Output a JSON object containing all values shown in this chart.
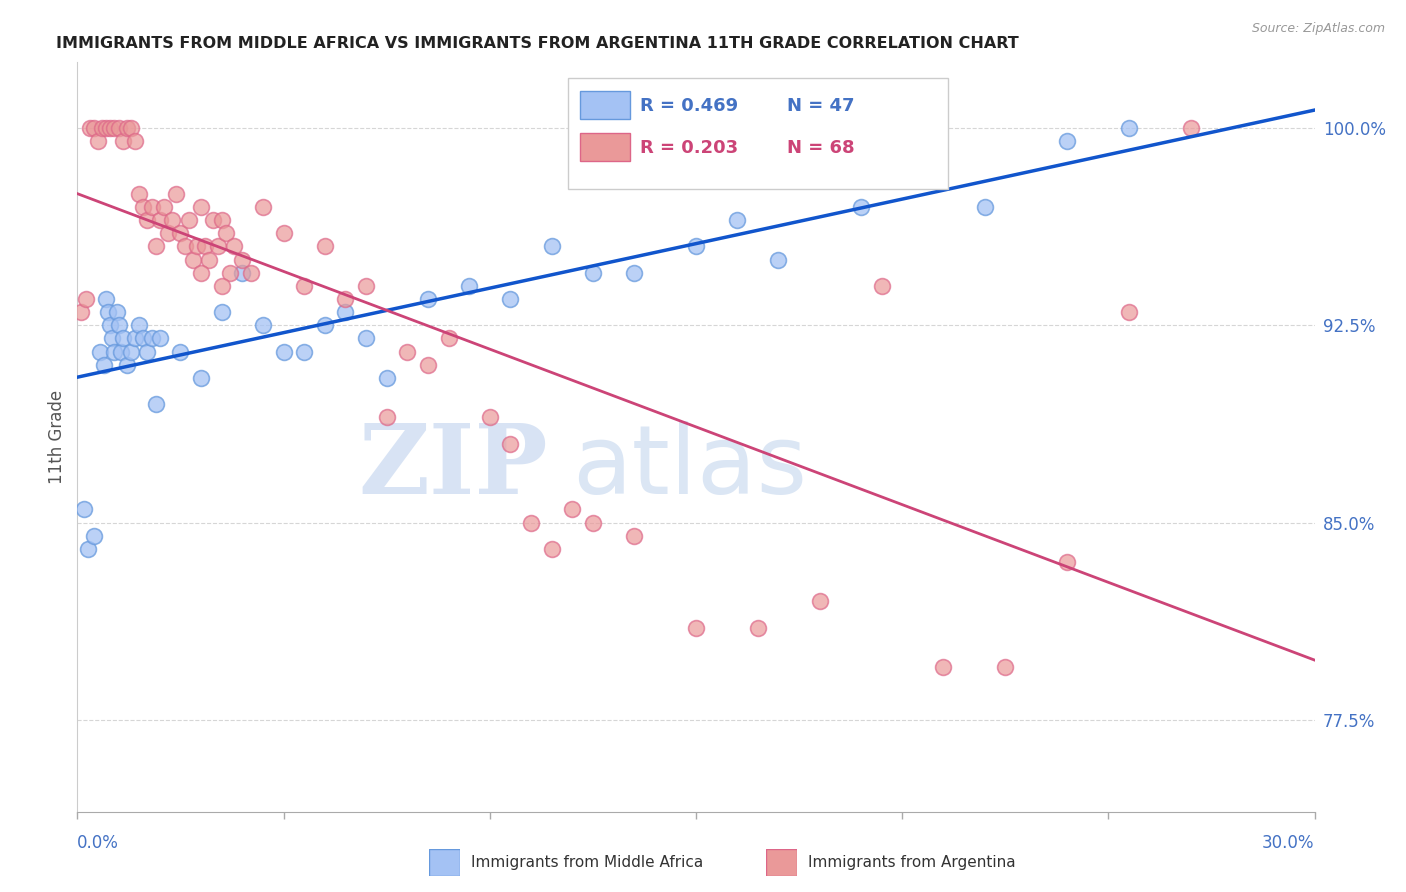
{
  "title": "IMMIGRANTS FROM MIDDLE AFRICA VS IMMIGRANTS FROM ARGENTINA 11TH GRADE CORRELATION CHART",
  "source": "Source: ZipAtlas.com",
  "ylabel": "11th Grade",
  "y_ticks": [
    77.5,
    85.0,
    92.5,
    100.0
  ],
  "y_tick_labels": [
    "77.5%",
    "85.0%",
    "92.5%",
    "100.0%"
  ],
  "x_min": 0.0,
  "x_max": 30.0,
  "y_min": 74.0,
  "y_max": 102.5,
  "blue_R": 0.469,
  "blue_N": 47,
  "pink_R": 0.203,
  "pink_N": 68,
  "blue_color": "#a4c2f4",
  "pink_color": "#ea9999",
  "blue_edge_color": "#6699dd",
  "pink_edge_color": "#dd6688",
  "blue_line_color": "#1155cc",
  "pink_line_color": "#cc4477",
  "legend_label_blue": "Immigrants from Middle Africa",
  "legend_label_pink": "Immigrants from Argentina",
  "blue_scatter_x": [
    0.15,
    0.25,
    0.4,
    0.55,
    0.65,
    0.7,
    0.75,
    0.8,
    0.85,
    0.9,
    0.95,
    1.0,
    1.05,
    1.1,
    1.2,
    1.3,
    1.4,
    1.5,
    1.6,
    1.7,
    1.8,
    1.9,
    2.0,
    2.5,
    3.0,
    3.5,
    4.0,
    4.5,
    5.0,
    5.5,
    6.0,
    6.5,
    7.0,
    7.5,
    8.5,
    9.5,
    10.5,
    11.5,
    12.5,
    13.5,
    15.0,
    16.0,
    17.0,
    19.0,
    22.0,
    24.0,
    25.5
  ],
  "blue_scatter_y": [
    85.5,
    84.0,
    84.5,
    91.5,
    91.0,
    93.5,
    93.0,
    92.5,
    92.0,
    91.5,
    93.0,
    92.5,
    91.5,
    92.0,
    91.0,
    91.5,
    92.0,
    92.5,
    92.0,
    91.5,
    92.0,
    89.5,
    92.0,
    91.5,
    90.5,
    93.0,
    94.5,
    92.5,
    91.5,
    91.5,
    92.5,
    93.0,
    92.0,
    90.5,
    93.5,
    94.0,
    93.5,
    95.5,
    94.5,
    94.5,
    95.5,
    96.5,
    95.0,
    97.0,
    97.0,
    99.5,
    100.0
  ],
  "pink_scatter_x": [
    0.1,
    0.2,
    0.3,
    0.4,
    0.5,
    0.6,
    0.7,
    0.8,
    0.9,
    1.0,
    1.1,
    1.2,
    1.3,
    1.4,
    1.5,
    1.6,
    1.7,
    1.8,
    1.9,
    2.0,
    2.1,
    2.2,
    2.3,
    2.4,
    2.5,
    2.6,
    2.7,
    2.8,
    2.9,
    3.0,
    3.1,
    3.2,
    3.3,
    3.4,
    3.5,
    3.6,
    3.7,
    3.8,
    4.0,
    4.2,
    4.5,
    5.0,
    5.5,
    6.0,
    6.5,
    7.0,
    7.5,
    8.0,
    8.5,
    9.0,
    10.0,
    11.0,
    12.0,
    13.5,
    15.0,
    16.5,
    18.0,
    19.5,
    21.0,
    22.5,
    24.0,
    25.5,
    27.0,
    3.0,
    3.5,
    10.5,
    11.5,
    12.5
  ],
  "pink_scatter_y": [
    93.0,
    93.5,
    100.0,
    100.0,
    99.5,
    100.0,
    100.0,
    100.0,
    100.0,
    100.0,
    99.5,
    100.0,
    100.0,
    99.5,
    97.5,
    97.0,
    96.5,
    97.0,
    95.5,
    96.5,
    97.0,
    96.0,
    96.5,
    97.5,
    96.0,
    95.5,
    96.5,
    95.0,
    95.5,
    97.0,
    95.5,
    95.0,
    96.5,
    95.5,
    96.5,
    96.0,
    94.5,
    95.5,
    95.0,
    94.5,
    97.0,
    96.0,
    94.0,
    95.5,
    93.5,
    94.0,
    89.0,
    91.5,
    91.0,
    92.0,
    89.0,
    85.0,
    85.5,
    84.5,
    81.0,
    81.0,
    82.0,
    94.0,
    79.5,
    79.5,
    83.5,
    93.0,
    100.0,
    94.5,
    94.0,
    88.0,
    84.0,
    85.0
  ]
}
